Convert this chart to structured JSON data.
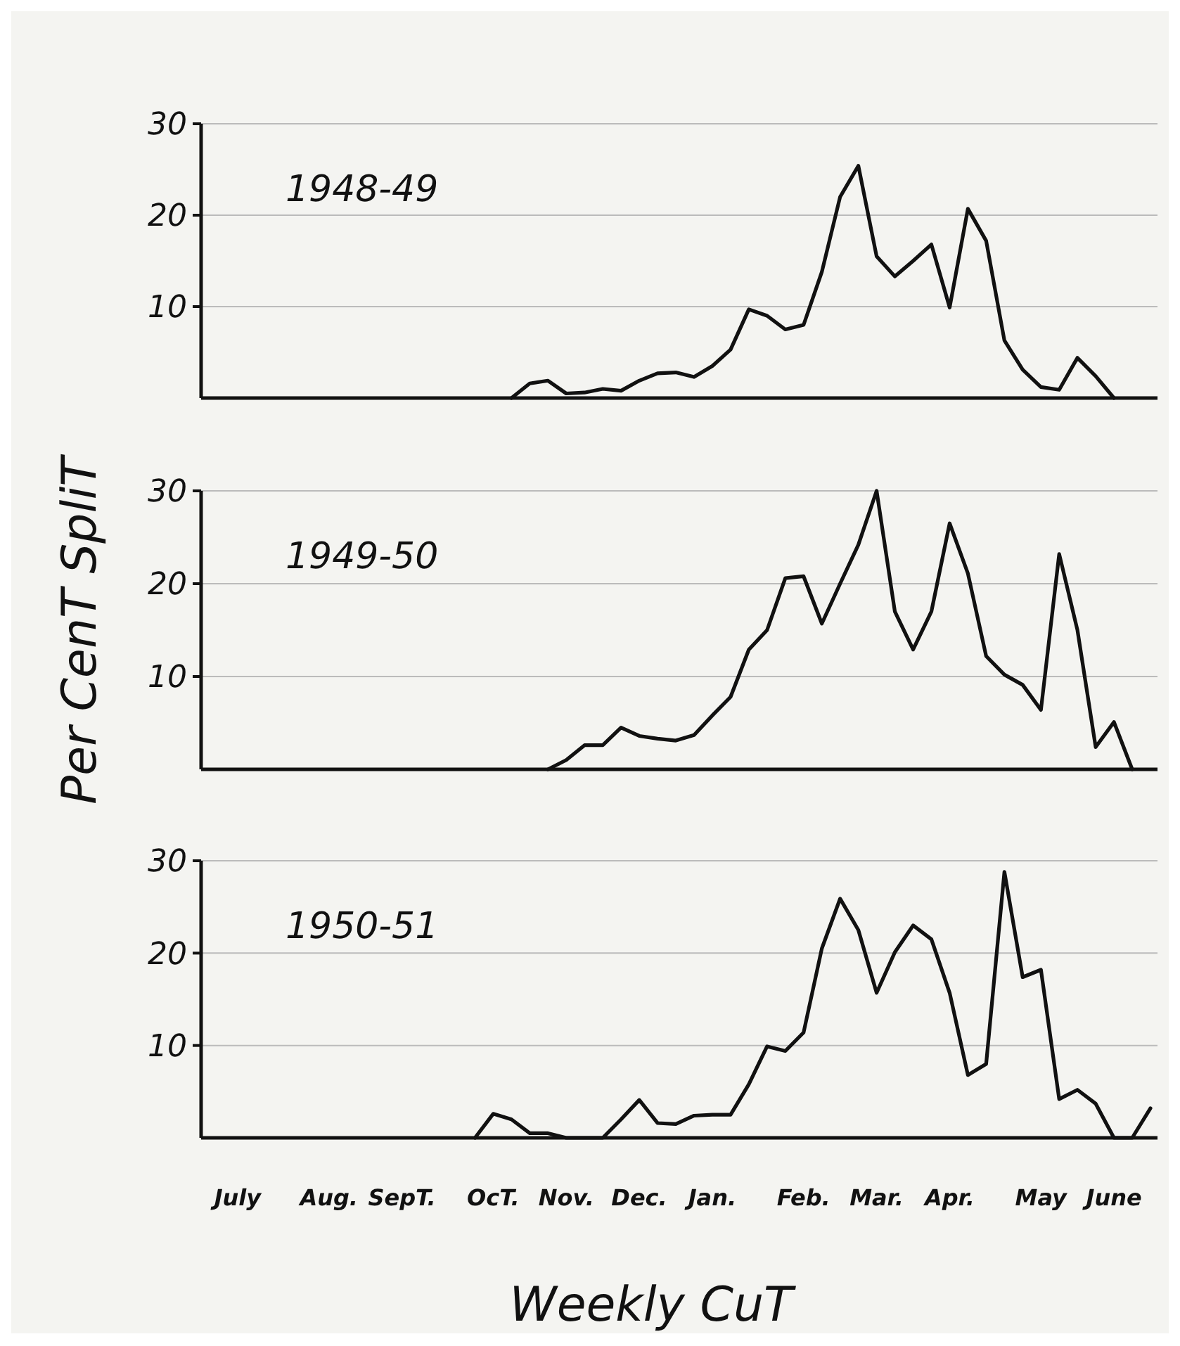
{
  "chart_data": [
    {
      "type": "line",
      "title": "1948-49",
      "categories": [
        null,
        null,
        null,
        null,
        null,
        null,
        null,
        null,
        null,
        null,
        null,
        null,
        null,
        null,
        null,
        null,
        null,
        null,
        null,
        null,
        null,
        null,
        null,
        null,
        null,
        null,
        null,
        null,
        null,
        null,
        null,
        null,
        null,
        null,
        null,
        null,
        null,
        null,
        null,
        null,
        null,
        null,
        null,
        null,
        null,
        null,
        null,
        null,
        null,
        null,
        null,
        null,
        null
      ],
      "ylim": [
        0,
        30
      ],
      "yticks": [
        10,
        20,
        30
      ],
      "grid": "y",
      "tick_labels": "y",
      "marker": "none",
      "line_style": "solid",
      "series": [
        {
          "color": "#111111",
          "values": [
            null,
            null,
            null,
            null,
            null,
            null,
            null,
            null,
            null,
            null,
            null,
            null,
            null,
            null,
            null,
            null,
            null,
            0,
            1.6,
            1.9,
            0.5,
            0.6,
            1,
            0.8,
            1.9,
            2.7,
            2.8,
            2.3,
            3.5,
            5.3,
            9.7,
            9,
            7.5,
            8,
            13.8,
            22,
            25.4,
            15.5,
            13.3,
            15,
            16.8,
            9.9,
            20.7,
            17.2,
            6.3,
            3.1,
            1.2,
            0.9,
            4.4,
            2.4,
            0,
            null,
            null
          ]
        }
      ]
    },
    {
      "type": "line",
      "title": "1949-50",
      "ylabel": "Per CenT SpliT",
      "categories": [
        null,
        null,
        null,
        null,
        null,
        null,
        null,
        null,
        null,
        null,
        null,
        null,
        null,
        null,
        null,
        null,
        null,
        null,
        null,
        null,
        null,
        null,
        null,
        null,
        null,
        null,
        null,
        null,
        null,
        null,
        null,
        null,
        null,
        null,
        null,
        null,
        null,
        null,
        null,
        null,
        null,
        null,
        null,
        null,
        null,
        null,
        null,
        null,
        null,
        null,
        null,
        null,
        null
      ],
      "ylim": [
        0,
        30
      ],
      "yticks": [
        10,
        20,
        30
      ],
      "grid": "y",
      "tick_labels": "y",
      "marker": "none",
      "line_style": "solid",
      "series": [
        {
          "color": "#111111",
          "values": [
            null,
            null,
            null,
            null,
            null,
            null,
            null,
            null,
            null,
            null,
            null,
            null,
            null,
            null,
            null,
            null,
            null,
            null,
            null,
            0,
            1,
            2.6,
            2.6,
            4.5,
            3.6,
            3.3,
            3.1,
            3.7,
            5.8,
            7.8,
            12.9,
            15,
            20.6,
            20.8,
            15.7,
            20,
            24.2,
            30,
            17,
            12.9,
            17,
            26.5,
            21.1,
            12.2,
            10.2,
            9.1,
            6.4,
            23.2,
            15,
            2.4,
            5.1,
            0,
            null
          ]
        }
      ]
    },
    {
      "type": "line",
      "title": "1950-51",
      "xlabel": "Weekly CuT",
      "categories": [
        null,
        null,
        "July",
        null,
        null,
        null,
        null,
        "Aug.",
        null,
        null,
        null,
        "SepT.",
        null,
        null,
        null,
        null,
        "OcT.",
        null,
        null,
        null,
        "Nov.",
        null,
        null,
        null,
        "Dec.",
        null,
        null,
        null,
        "Jan.",
        null,
        null,
        null,
        null,
        "Feb.",
        null,
        null,
        null,
        "Mar.",
        null,
        null,
        null,
        "Apr.",
        null,
        null,
        null,
        null,
        "May",
        null,
        null,
        null,
        "June",
        null,
        null
      ],
      "ylim": [
        0,
        30
      ],
      "yticks": [
        10,
        20,
        30
      ],
      "grid": "y",
      "marker": "none",
      "line_style": "solid",
      "series": [
        {
          "color": "#111111",
          "values": [
            null,
            null,
            null,
            null,
            null,
            null,
            null,
            null,
            null,
            null,
            null,
            null,
            null,
            null,
            null,
            0,
            2.6,
            2,
            0.5,
            0.5,
            0,
            0,
            0,
            2,
            4.1,
            1.6,
            1.5,
            2.4,
            2.5,
            2.5,
            5.8,
            9.9,
            9.4,
            11.4,
            20.5,
            25.9,
            22.5,
            15.7,
            20.1,
            23,
            21.5,
            15.7,
            6.8,
            8,
            28.8,
            17.4,
            18.2,
            4.2,
            5.2,
            3.7,
            0,
            0,
            3.2
          ]
        }
      ]
    }
  ]
}
